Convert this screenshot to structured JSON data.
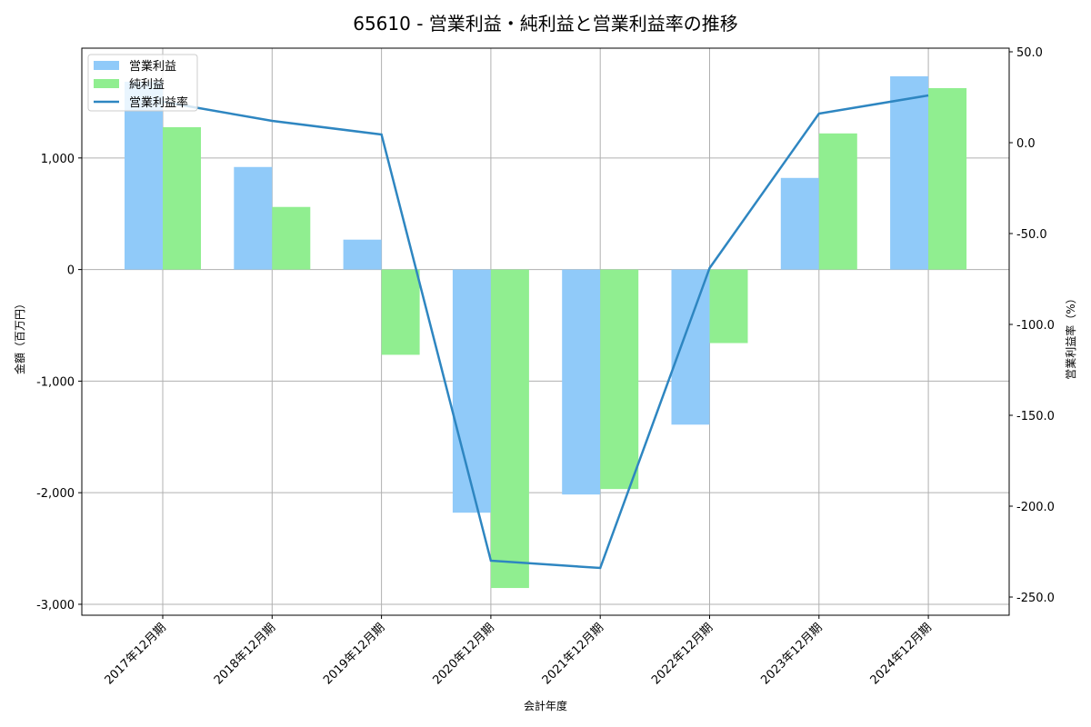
{
  "chart_data": {
    "type": "bar+line",
    "title": "65610 - 営業利益・純利益と営業利益率の推移",
    "xlabel": "会計年度",
    "ylabel": "金額（百万円）",
    "ylabel_right": "営業利益率（%）",
    "categories": [
      "2017年12月期",
      "2018年12月期",
      "2019年12月期",
      "2020年12月期",
      "2021年12月期",
      "2022年12月期",
      "2023年12月期",
      "2024年12月期"
    ],
    "series": [
      {
        "name": "営業利益",
        "type": "bar",
        "axis": "left",
        "color": "#90caf9",
        "values": [
          1683,
          919,
          268,
          -2179,
          -2016,
          -1390,
          821,
          1732
        ]
      },
      {
        "name": "純利益",
        "type": "bar",
        "axis": "left",
        "color": "#90ee90",
        "values": [
          1276,
          561,
          -764,
          -2854,
          -1967,
          -659,
          1220,
          1626
        ]
      },
      {
        "name": "営業利益率",
        "type": "line",
        "axis": "right",
        "color": "#2e86c1",
        "values": [
          22.5,
          12.0,
          4.5,
          -230.0,
          -234.0,
          -69.0,
          16.0,
          26.0
        ]
      }
    ],
    "ylim": [
      -3098,
      1984
    ],
    "ylim_right": [
      -260,
      52
    ],
    "yticks": [
      -3000,
      -2000,
      -1000,
      0,
      1000
    ],
    "ytick_labels": [
      "-3,000",
      "-2,000",
      "-1,000",
      "0",
      "1,000"
    ],
    "yticks_right": [
      -250,
      -200,
      -150,
      -100,
      -50,
      0,
      50
    ],
    "ytick_labels_right": [
      "-250.0",
      "-200.0",
      "-150.0",
      "-100.0",
      "-50.0",
      "0.0",
      "50.0"
    ],
    "grid": true,
    "legend_position": "upper left"
  }
}
